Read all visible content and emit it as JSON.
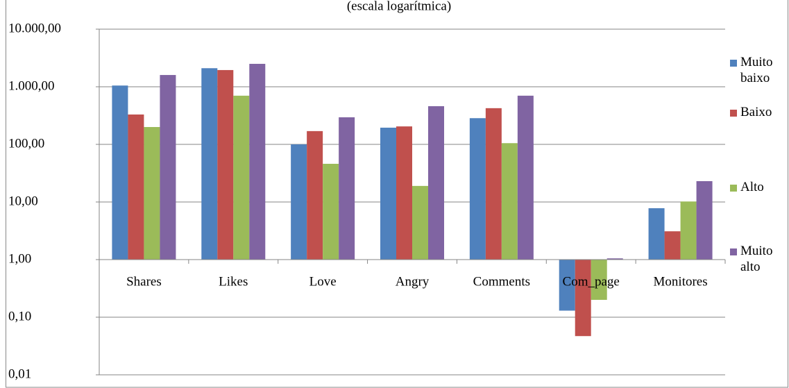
{
  "chart_data": {
    "type": "bar",
    "subtitle": "(escala logarítmica)",
    "categories": [
      "Shares",
      "Likes",
      "Love",
      "Angry",
      "Comments",
      "Com_page",
      "Monitores"
    ],
    "series": [
      {
        "name": "Muito baixo",
        "color": "#4f81bd",
        "values": [
          1050,
          2100,
          100,
          195,
          285,
          0.13,
          7.8
        ]
      },
      {
        "name": "Baixo",
        "color": "#c0504d",
        "values": [
          330,
          1950,
          170,
          205,
          425,
          0.047,
          3.1
        ]
      },
      {
        "name": "Alto",
        "color": "#9bbb59",
        "values": [
          200,
          700,
          46,
          19,
          105,
          0.2,
          10.2
        ]
      },
      {
        "name": "Muito alto",
        "color": "#8064a2",
        "values": [
          1600,
          2500,
          295,
          460,
          700,
          1.05,
          23
        ]
      }
    ],
    "log_scale": true,
    "ylim": [
      0.01,
      10000
    ],
    "yticks": [
      {
        "value": 0.01,
        "label": "0,01"
      },
      {
        "value": 0.1,
        "label": "0,10"
      },
      {
        "value": 1,
        "label": "1,00"
      },
      {
        "value": 10,
        "label": "10,00"
      },
      {
        "value": 100,
        "label": "100,00"
      },
      {
        "value": 1000,
        "label": "1.000,00"
      },
      {
        "value": 10000,
        "label": "10.000,00"
      }
    ],
    "grid": true,
    "legend": "right"
  }
}
